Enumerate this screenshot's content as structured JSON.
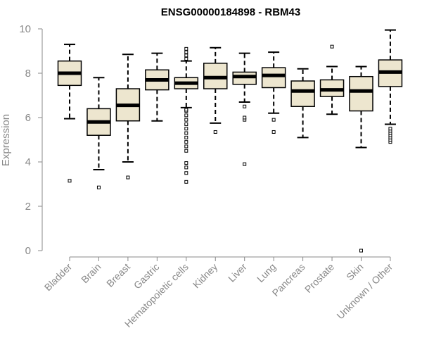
{
  "chart_data": {
    "type": "boxplot",
    "title": "ENSG00000184898 - RBM43",
    "xlabel": "",
    "ylabel": "Expression",
    "ylim": [
      0,
      10
    ],
    "yticks": [
      0,
      2,
      4,
      6,
      8,
      10
    ],
    "grid": false,
    "colors": {
      "box_fill": "#ede6cf",
      "box_stroke": "#000000",
      "axis": "#888888",
      "text": "#888888"
    },
    "categories": [
      "Bladder",
      "Brain",
      "Breast",
      "Gastric",
      "Hematopoietic cells",
      "Kidney",
      "Liver",
      "Lung",
      "Pancreas",
      "Prostate",
      "Skin",
      "Unknown / Other"
    ],
    "series": [
      {
        "category": "Bladder",
        "whisker_low": 5.95,
        "q1": 7.45,
        "median": 8.0,
        "q3": 8.55,
        "whisker_high": 9.3,
        "outliers": [
          3.15
        ]
      },
      {
        "category": "Brain",
        "whisker_low": 3.65,
        "q1": 5.2,
        "median": 5.8,
        "q3": 6.4,
        "whisker_high": 7.8,
        "outliers": [
          2.85
        ]
      },
      {
        "category": "Breast",
        "whisker_low": 4.0,
        "q1": 5.85,
        "median": 6.55,
        "q3": 7.3,
        "whisker_high": 8.85,
        "outliers": [
          3.3
        ]
      },
      {
        "category": "Gastric",
        "whisker_low": 5.85,
        "q1": 7.25,
        "median": 7.7,
        "q3": 8.15,
        "whisker_high": 8.9,
        "outliers": []
      },
      {
        "category": "Hematopoietic cells",
        "whisker_low": 6.45,
        "q1": 7.3,
        "median": 7.55,
        "q3": 7.8,
        "whisker_high": 8.55,
        "outliers": [
          3.1,
          3.5,
          3.75,
          3.95,
          4.5,
          4.7,
          4.9,
          5.1,
          5.3,
          5.5,
          5.7,
          5.9,
          6.1,
          6.3,
          6.35,
          8.65,
          8.8,
          8.95,
          9.1
        ]
      },
      {
        "category": "Kidney",
        "whisker_low": 5.75,
        "q1": 7.3,
        "median": 7.8,
        "q3": 8.45,
        "whisker_high": 9.15,
        "outliers": [
          5.35
        ]
      },
      {
        "category": "Liver",
        "whisker_low": 6.7,
        "q1": 7.5,
        "median": 7.85,
        "q3": 8.05,
        "whisker_high": 8.9,
        "outliers": [
          3.9,
          5.9,
          6.0,
          6.5
        ]
      },
      {
        "category": "Lung",
        "whisker_low": 6.2,
        "q1": 7.35,
        "median": 7.9,
        "q3": 8.25,
        "whisker_high": 8.95,
        "outliers": [
          5.35,
          5.9
        ]
      },
      {
        "category": "Pancreas",
        "whisker_low": 5.1,
        "q1": 6.5,
        "median": 7.2,
        "q3": 7.65,
        "whisker_high": 8.2,
        "outliers": []
      },
      {
        "category": "Prostate",
        "whisker_low": 6.15,
        "q1": 6.95,
        "median": 7.25,
        "q3": 7.7,
        "whisker_high": 8.3,
        "outliers": [
          9.2
        ]
      },
      {
        "category": "Skin",
        "whisker_low": 4.65,
        "q1": 6.3,
        "median": 7.2,
        "q3": 7.85,
        "whisker_high": 8.3,
        "outliers": [
          0.0
        ]
      },
      {
        "category": "Unknown / Other",
        "whisker_low": 5.7,
        "q1": 7.4,
        "median": 8.05,
        "q3": 8.6,
        "whisker_high": 9.95,
        "outliers": [
          4.9,
          5.0,
          5.1,
          5.2,
          5.3,
          5.4,
          5.5
        ]
      }
    ]
  }
}
